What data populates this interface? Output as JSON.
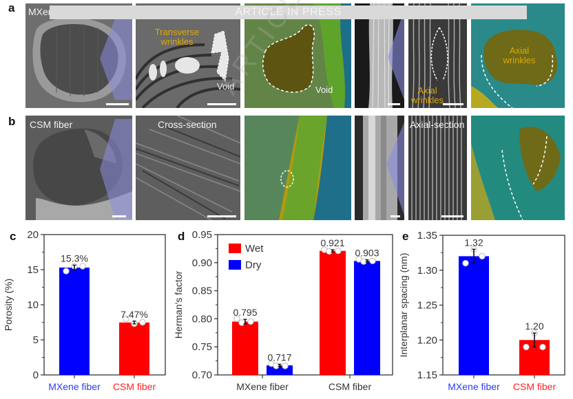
{
  "banner": {
    "text": "ARTICLE IN PRESS"
  },
  "watermark": {
    "text": "ARTICLE IN PRESS"
  },
  "panels": {
    "a": {
      "label": "a",
      "sample_label": "MXene fiber",
      "annotations": {
        "transverse": "Transverse wrinkles",
        "void1": "Void",
        "void2": "Void",
        "axial1": "Axial wrinkles",
        "axial2": "Axial wrinkles"
      }
    },
    "b": {
      "label": "b",
      "sample_label": "CSM fiber",
      "cross_section": "Cross-section",
      "axial_section": "Axial-section"
    }
  },
  "colors": {
    "blue": "#0000ff",
    "red": "#ff0000",
    "mxene_label": "#2a3cf0",
    "csm_label": "#ff2020"
  },
  "chart_data": [
    {
      "id": "c",
      "panel_label": "c",
      "type": "bar",
      "title": "",
      "xlabel": "",
      "ylabel": "Porosity (%)",
      "ylim": [
        0,
        20
      ],
      "yticks": [
        "0",
        "5",
        "10",
        "15",
        "20"
      ],
      "ytick_values": [
        0,
        5,
        10,
        15,
        20
      ],
      "minor_step": 2.5,
      "categories": [
        "MXene fiber",
        "CSM fiber"
      ],
      "values": [
        15.3,
        7.47
      ],
      "errors": [
        0.35,
        0.2
      ],
      "value_labels": [
        "15.3%",
        "7.47%"
      ],
      "bar_colors": [
        "#0000ff",
        "#ff0000"
      ],
      "category_colors": [
        "#2a3cf0",
        "#ff2020"
      ],
      "points": [
        [
          14.8,
          15.5,
          15.5
        ],
        [
          8.0,
          7.3,
          7.5
        ]
      ]
    },
    {
      "id": "d",
      "panel_label": "d",
      "type": "bar",
      "title": "",
      "xlabel": "",
      "ylabel": "Herman's factor",
      "ylim": [
        0.7,
        0.95
      ],
      "yticks": [
        "0.70",
        "0.75",
        "0.80",
        "0.85",
        "0.90",
        "0.95"
      ],
      "ytick_values": [
        0.7,
        0.75,
        0.8,
        0.85,
        0.9,
        0.95
      ],
      "minor_step": 0.025,
      "categories": [
        "MXene fiber",
        "CSM fiber"
      ],
      "legend": {
        "position": "top-left",
        "entries": [
          "Wet",
          "Dry"
        ]
      },
      "series": [
        {
          "name": "Wet",
          "color": "#ff0000",
          "values": [
            0.795,
            0.921
          ],
          "errors": [
            0.004,
            0.002
          ],
          "value_labels": [
            "0.795",
            "0.921"
          ],
          "points": [
            [
              0.8,
              0.793,
              0.795
            ],
            [
              0.923,
              0.92,
              0.921
            ]
          ]
        },
        {
          "name": "Dry",
          "color": "#0000ff",
          "values": [
            0.717,
            0.903
          ],
          "errors": [
            0.002,
            0.002
          ],
          "value_labels": [
            "0.717",
            "0.903"
          ],
          "points": [
            [
              0.72,
              0.716,
              0.716
            ],
            [
              0.906,
              0.902,
              0.903
            ]
          ]
        }
      ]
    },
    {
      "id": "e",
      "panel_label": "e",
      "type": "bar",
      "title": "",
      "xlabel": "",
      "ylabel": "Interplanar spacing (nm)",
      "ylim": [
        1.15,
        1.35
      ],
      "yticks": [
        "1.15",
        "1.20",
        "1.25",
        "1.30",
        "1.35"
      ],
      "ytick_values": [
        1.15,
        1.2,
        1.25,
        1.3,
        1.35
      ],
      "minor_step": 0.025,
      "categories": [
        "MXene fiber",
        "CSM fiber"
      ],
      "values": [
        1.32,
        1.2
      ],
      "errors": [
        0.01,
        0.01
      ],
      "value_labels": [
        "1.32",
        "1.20"
      ],
      "bar_colors": [
        "#0000ff",
        "#ff0000"
      ],
      "category_colors": [
        "#2a3cf0",
        "#ff2020"
      ],
      "points": [
        [
          1.31,
          1.33,
          1.32
        ],
        [
          1.19,
          1.21,
          1.19
        ]
      ]
    }
  ]
}
